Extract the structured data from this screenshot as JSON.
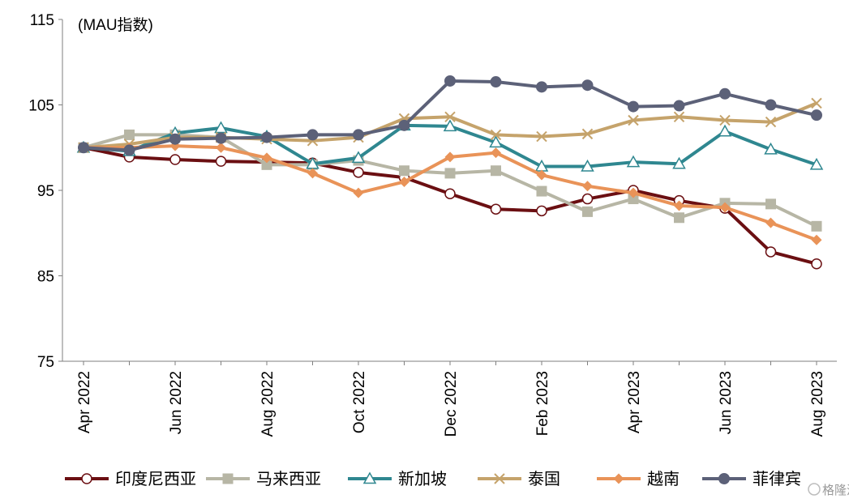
{
  "chart_data": {
    "type": "line",
    "unit_label": "(MAU指数)",
    "ylim": [
      75,
      115
    ],
    "y_ticks": [
      75,
      85,
      95,
      105,
      115
    ],
    "x": [
      "Apr 2022",
      "May 2022",
      "Jun 2022",
      "Jul 2022",
      "Aug 2022",
      "Sep 2022",
      "Oct 2022",
      "Nov 2022",
      "Dec 2022",
      "Jan 2023",
      "Feb 2023",
      "Mar 2023",
      "Apr 2023",
      "May 2023",
      "Jun 2023",
      "Jul 2023",
      "Aug 2023"
    ],
    "x_tick_labels": [
      "Apr 2022",
      "Jun 2022",
      "Aug 2022",
      "Oct 2022",
      "Dec 2022",
      "Feb 2023",
      "Apr 2023",
      "Jun 2023",
      "Aug 2023"
    ],
    "grid": false,
    "legend_position": "bottom",
    "series": [
      {
        "name": "印度尼西亚",
        "color": "#6b0f12",
        "marker": "circle-open",
        "values": [
          100,
          98.9,
          98.6,
          98.4,
          98.3,
          98.2,
          97.1,
          96.5,
          94.6,
          92.8,
          92.6,
          94.0,
          95.0,
          93.8,
          92.9,
          87.8,
          86.4
        ]
      },
      {
        "name": "马来西亚",
        "color": "#b7b6a5",
        "marker": "square",
        "values": [
          100,
          101.5,
          101.5,
          101.2,
          98.0,
          98.0,
          98.5,
          97.3,
          97.0,
          97.3,
          94.9,
          92.5,
          94.0,
          91.8,
          93.5,
          93.4,
          90.8
        ]
      },
      {
        "name": "新加坡",
        "color": "#2f8790",
        "marker": "triangle-open",
        "values": [
          100,
          99.6,
          101.7,
          102.3,
          101.3,
          98.1,
          98.8,
          102.6,
          102.5,
          100.6,
          97.8,
          97.8,
          98.3,
          98.1,
          101.9,
          99.8,
          98.0
        ]
      },
      {
        "name": "泰国",
        "color": "#c5a36b",
        "marker": "cross",
        "values": [
          100,
          100.4,
          101.2,
          101.2,
          101.0,
          100.8,
          101.2,
          103.4,
          103.6,
          101.5,
          101.3,
          101.6,
          103.2,
          103.6,
          103.2,
          103.0,
          105.2
        ]
      },
      {
        "name": "越南",
        "color": "#e99358",
        "marker": "diamond",
        "values": [
          100,
          100.0,
          100.2,
          100.0,
          98.8,
          97.0,
          94.7,
          96.0,
          98.9,
          99.4,
          96.8,
          95.5,
          94.7,
          93.2,
          93.0,
          91.2,
          89.2
        ]
      },
      {
        "name": "菲律宾",
        "color": "#5c6178",
        "marker": "circle",
        "values": [
          100,
          99.7,
          101.0,
          101.1,
          101.2,
          101.5,
          101.5,
          102.6,
          107.8,
          107.7,
          107.1,
          107.3,
          104.8,
          104.9,
          106.3,
          105.0,
          103.8
        ]
      }
    ]
  },
  "watermark": "格隆汇"
}
